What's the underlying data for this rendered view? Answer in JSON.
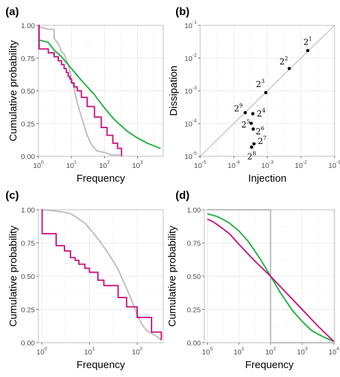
{
  "colors": {
    "gray": "#bdbdbd",
    "magenta": "#c9167f",
    "green": "#1fb13f",
    "point": "#000000",
    "refline": "#9a9a9a"
  },
  "chart_data": [
    {
      "panel": "(a)",
      "type": "line",
      "xscale": "log",
      "xlabel": "Frequency",
      "ylabel": "Cumulative probability",
      "xlim": [
        1,
        6000
      ],
      "ylim": [
        0,
        1
      ],
      "xticks": [
        1,
        10,
        100,
        1000
      ],
      "yticks": [
        0,
        0.25,
        0.5,
        0.75,
        1
      ],
      "ytick_labels": [
        "0.00",
        "0.25",
        "0.50",
        "0.75",
        "1.00"
      ],
      "series": [
        {
          "color_key": "gray",
          "x": [
            1,
            2,
            3,
            3,
            4,
            5,
            6,
            8,
            10,
            12,
            14,
            18,
            24,
            30,
            40,
            60,
            100,
            160,
            300
          ],
          "y": [
            0.99,
            0.97,
            0.97,
            0.9,
            0.86,
            0.8,
            0.78,
            0.7,
            0.6,
            0.52,
            0.44,
            0.34,
            0.24,
            0.16,
            0.09,
            0.04,
            0.03,
            0.01,
            0.01
          ]
        },
        {
          "color_key": "green",
          "x": [
            1,
            2,
            3,
            5,
            10,
            20,
            50,
            100,
            200,
            500,
            1000,
            2000,
            5000
          ],
          "y": [
            0.89,
            0.87,
            0.81,
            0.76,
            0.67,
            0.58,
            0.47,
            0.37,
            0.28,
            0.19,
            0.14,
            0.1,
            0.06
          ]
        },
        {
          "color_key": "magenta",
          "steps": true,
          "x": [
            1,
            1.05,
            1.2,
            2,
            3,
            4,
            5,
            6,
            7,
            8,
            9,
            10,
            12,
            15,
            20,
            30,
            50,
            80,
            120,
            180,
            250,
            330,
            330
          ],
          "y": [
            1.0,
            0.82,
            0.82,
            0.79,
            0.76,
            0.73,
            0.7,
            0.67,
            0.64,
            0.61,
            0.59,
            0.56,
            0.53,
            0.5,
            0.45,
            0.38,
            0.3,
            0.22,
            0.16,
            0.1,
            0.06,
            0.03,
            0.0
          ]
        }
      ]
    },
    {
      "panel": "(b)",
      "type": "scatter",
      "xscale": "log",
      "yscale": "log",
      "xlabel": "Injection",
      "ylabel": "Dissipation",
      "xlim": [
        1e-05,
        0.1
      ],
      "ylim": [
        1e-05,
        0.1
      ],
      "ticks": [
        1e-05,
        0.0001,
        0.001,
        0.01,
        0.1
      ],
      "tick_exponents": [
        "-5",
        "-4",
        "-3",
        "-2",
        "-1"
      ],
      "reference_line": "y = x",
      "points": [
        {
          "label_base": "2",
          "label_exp": "1",
          "x": 0.016,
          "y": 0.017
        },
        {
          "label_base": "2",
          "label_exp": "2",
          "x": 0.0045,
          "y": 0.0048
        },
        {
          "label_base": "2",
          "label_exp": "3",
          "x": 0.0009,
          "y": 0.00088
        },
        {
          "label_base": "2",
          "label_exp": "4",
          "x": 0.00037,
          "y": 0.0002
        },
        {
          "label_base": "2",
          "label_exp": "5",
          "x": 0.00033,
          "y": 0.000102
        },
        {
          "label_base": "2",
          "label_exp": "6",
          "x": 0.00038,
          "y": 6.8e-05
        },
        {
          "label_base": "2",
          "label_exp": "7",
          "x": 0.0004,
          "y": 2.4e-05
        },
        {
          "label_base": "2",
          "label_exp": "8",
          "x": 0.00034,
          "y": 1.9e-05
        },
        {
          "label_base": "2",
          "label_exp": "9",
          "x": 0.00022,
          "y": 0.000215
        }
      ]
    },
    {
      "panel": "(c)",
      "type": "line",
      "xscale": "log",
      "xlabel": "Frequency",
      "ylabel": "Cumulative probability",
      "xlim": [
        0.85,
        350
      ],
      "ylim": [
        0,
        1
      ],
      "xticks": [
        1,
        10,
        100
      ],
      "yticks": [
        0,
        0.25,
        0.5,
        0.75,
        1
      ],
      "ytick_labels": [
        "0.00",
        "0.25",
        "0.50",
        "0.75",
        "1.00"
      ],
      "series": [
        {
          "color_key": "gray",
          "x": [
            1,
            2,
            3,
            4,
            5,
            6,
            8,
            10,
            13,
            16,
            20,
            25,
            32,
            40,
            50,
            63,
            80,
            100,
            130,
            160,
            200,
            250,
            320
          ],
          "y": [
            1.0,
            0.99,
            0.98,
            0.97,
            0.95,
            0.93,
            0.9,
            0.86,
            0.81,
            0.77,
            0.72,
            0.67,
            0.61,
            0.55,
            0.47,
            0.39,
            0.3,
            0.21,
            0.13,
            0.09,
            0.07,
            0.05,
            0.02
          ]
        },
        {
          "color_key": "magenta",
          "steps": true,
          "x": [
            1,
            1.02,
            1.5,
            2,
            3,
            4,
            5,
            6,
            8,
            10,
            15,
            20,
            40,
            60,
            100,
            200,
            320
          ],
          "y": [
            1.0,
            0.82,
            0.82,
            0.73,
            0.69,
            0.64,
            0.62,
            0.59,
            0.56,
            0.53,
            0.47,
            0.43,
            0.34,
            0.27,
            0.19,
            0.08,
            0.02
          ]
        }
      ]
    },
    {
      "panel": "(d)",
      "type": "line",
      "xscale": "log",
      "xlabel": "Frequency",
      "ylabel": "Cumulative probability",
      "xlim": [
        0.8,
        10500
      ],
      "ylim": [
        0,
        1
      ],
      "xticks": [
        1,
        10,
        100,
        1000,
        10000
      ],
      "yticks": [
        0,
        0.25,
        0.5,
        0.75,
        1
      ],
      "ytick_labels": [
        "0.00",
        "0.25",
        "0.50",
        "0.75",
        "1.00"
      ],
      "series": [
        {
          "color_key": "gray",
          "x": [
            1,
            100,
            100,
            10000
          ],
          "y": [
            1.0,
            1.0,
            0.0,
            0.0
          ]
        },
        {
          "color_key": "green",
          "x": [
            1,
            2,
            3,
            5,
            10,
            20,
            50,
            100,
            200,
            500,
            1000,
            2000,
            5000,
            10000
          ],
          "y": [
            0.97,
            0.95,
            0.93,
            0.9,
            0.84,
            0.76,
            0.62,
            0.5,
            0.38,
            0.24,
            0.16,
            0.09,
            0.04,
            0.01
          ]
        },
        {
          "color_key": "magenta",
          "x": [
            1,
            1.5,
            2,
            3,
            5,
            10,
            30,
            100,
            300,
            1000,
            3000,
            10000
          ],
          "y": [
            0.93,
            0.91,
            0.89,
            0.86,
            0.82,
            0.74,
            0.62,
            0.5,
            0.38,
            0.25,
            0.13,
            0.01
          ]
        }
      ]
    }
  ]
}
